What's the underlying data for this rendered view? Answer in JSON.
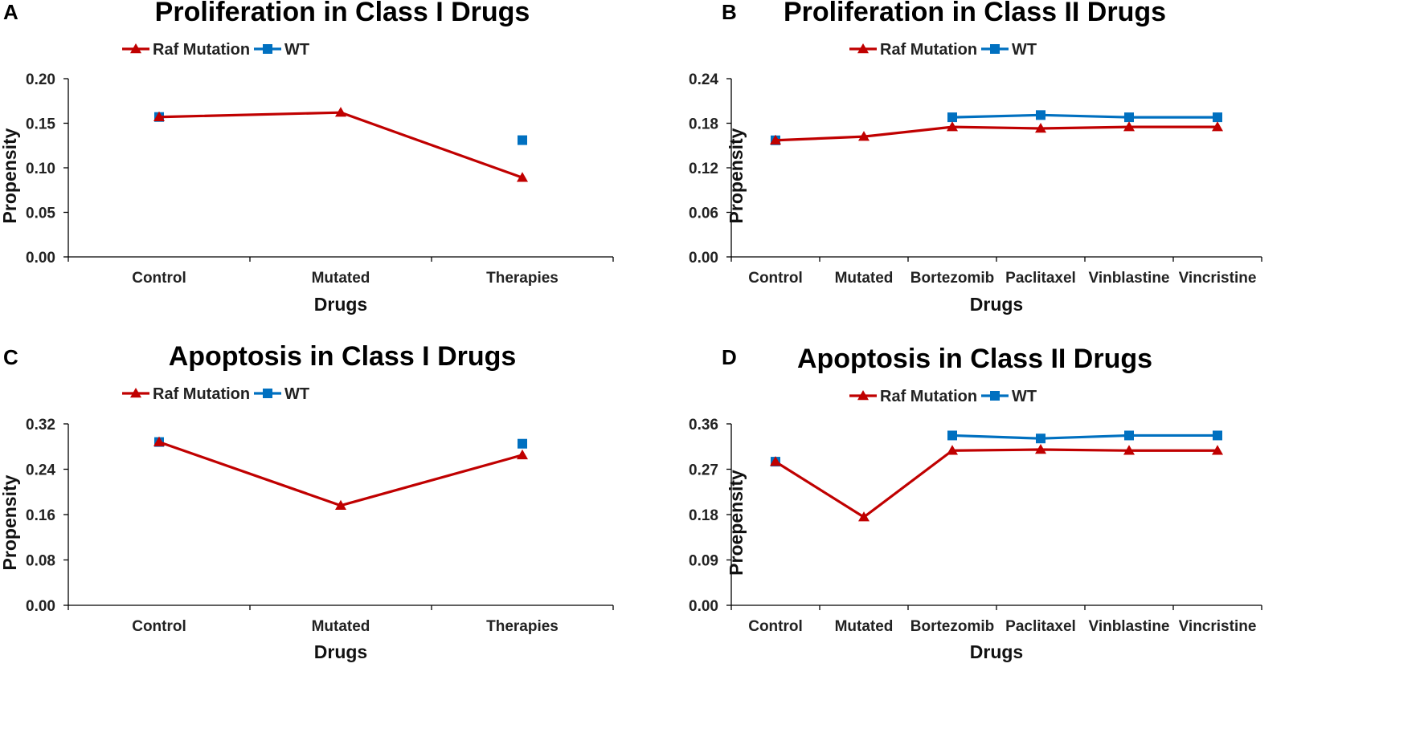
{
  "colors": {
    "raf": "#c00000",
    "wt": "#0070c0",
    "axis": "#000000"
  },
  "chart_data": [
    {
      "panel": "A",
      "type": "line",
      "title": "Proliferation in Class I Drugs",
      "xlabel": "Drugs",
      "ylabel": "Propensity",
      "categories": [
        "Control",
        "Mutated",
        "Therapies"
      ],
      "ylim": [
        0,
        0.2
      ],
      "yticks": [
        "0.00",
        "0.05",
        "0.10",
        "0.15",
        "0.20"
      ],
      "grid": false,
      "legend": "top-center",
      "series": [
        {
          "name": "Raf Mutation",
          "marker": "triangle",
          "color": "#c00000",
          "values": [
            0.157,
            0.162,
            0.089
          ]
        },
        {
          "name": "WT",
          "marker": "square",
          "color": "#0070c0",
          "values": [
            0.157,
            null,
            0.131
          ]
        }
      ]
    },
    {
      "panel": "B",
      "type": "line",
      "title": "Proliferation in Class II Drugs",
      "xlabel": "Drugs",
      "ylabel": "Propensity",
      "categories": [
        "Control",
        "Mutated",
        "Bortezomib",
        "Paclitaxel",
        "Vinblastine",
        "Vincristine"
      ],
      "ylim": [
        0,
        0.24
      ],
      "yticks": [
        "0.00",
        "0.06",
        "0.12",
        "0.18",
        "0.24"
      ],
      "grid": false,
      "legend": "top-center",
      "series": [
        {
          "name": "Raf Mutation",
          "marker": "triangle",
          "color": "#c00000",
          "values": [
            0.157,
            0.162,
            0.175,
            0.173,
            0.175,
            0.175
          ]
        },
        {
          "name": "WT",
          "marker": "square",
          "color": "#0070c0",
          "values": [
            0.157,
            null,
            0.188,
            0.191,
            0.188,
            0.188
          ]
        }
      ]
    },
    {
      "panel": "C",
      "type": "line",
      "title": "Apoptosis in Class I Drugs",
      "xlabel": "Drugs",
      "ylabel": "Propensity",
      "categories": [
        "Control",
        "Mutated",
        "Therapies"
      ],
      "ylim": [
        0,
        0.32
      ],
      "yticks": [
        "0.00",
        "0.08",
        "0.16",
        "0.24",
        "0.32"
      ],
      "grid": false,
      "legend": "top-center",
      "series": [
        {
          "name": "Raf Mutation",
          "marker": "triangle",
          "color": "#c00000",
          "values": [
            0.288,
            0.176,
            0.265
          ]
        },
        {
          "name": "WT",
          "marker": "square",
          "color": "#0070c0",
          "values": [
            0.288,
            null,
            0.285
          ]
        }
      ]
    },
    {
      "panel": "D",
      "type": "line",
      "title": "Apoptosis in Class II Drugs",
      "xlabel": "Drugs",
      "ylabel": "Proepensity",
      "categories": [
        "Control",
        "Mutated",
        "Bortezomib",
        "Paclitaxel",
        "Vinblastine",
        "Vincristine"
      ],
      "ylim": [
        0,
        0.36
      ],
      "yticks": [
        "0.00",
        "0.09",
        "0.18",
        "0.27",
        "0.36"
      ],
      "grid": false,
      "legend": "top-center",
      "series": [
        {
          "name": "Raf Mutation",
          "marker": "triangle",
          "color": "#c00000",
          "values": [
            0.285,
            0.175,
            0.307,
            0.309,
            0.307,
            0.307
          ]
        },
        {
          "name": "WT",
          "marker": "square",
          "color": "#0070c0",
          "values": [
            0.285,
            null,
            0.337,
            0.331,
            0.337,
            0.337
          ]
        }
      ]
    }
  ]
}
